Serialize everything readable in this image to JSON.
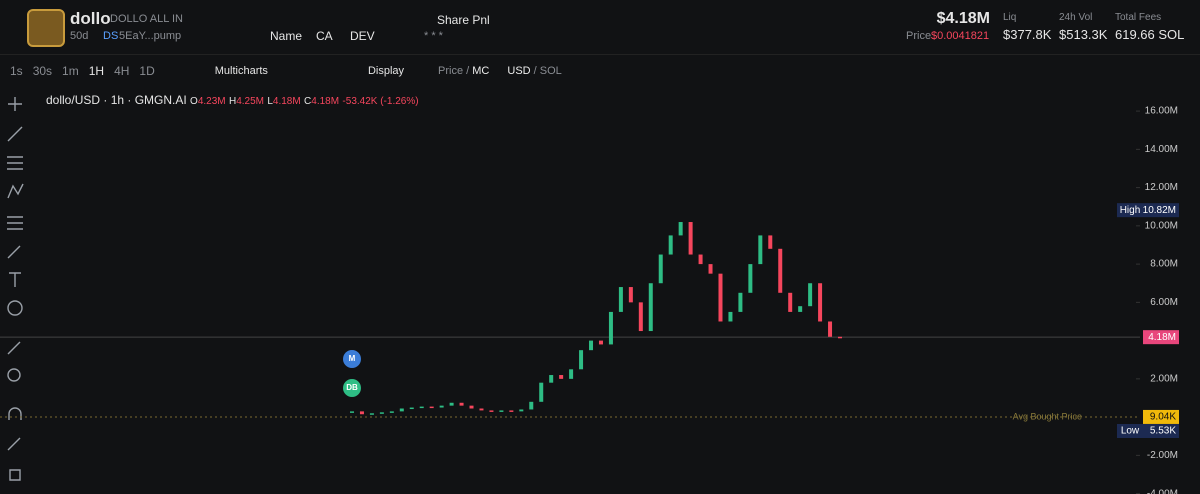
{
  "header": {
    "name": "dollo",
    "full_name": "DOLLO ALL IN",
    "age": "50d",
    "ds": "DS",
    "address": "5EaY...pump",
    "links": [
      "Name",
      "CA",
      "DEV"
    ],
    "share": "Share Pnl",
    "stars": "* * *",
    "market_cap": "$4.18M",
    "price_label": "Price",
    "price": "$0.0041821",
    "stats": [
      {
        "label": "Liq",
        "value": "$377.8K"
      },
      {
        "label": "24h Vol",
        "value": "$513.3K"
      },
      {
        "label": "Total Fees",
        "value": "619.66 SOL"
      }
    ]
  },
  "toolbar": {
    "intervals": [
      "1s",
      "30s",
      "1m",
      "1H",
      "4H",
      "1D"
    ],
    "multicharts": "Multicharts",
    "display": "Display",
    "price": "Price",
    "sep": "/",
    "mc": "MC",
    "usd": "USD",
    "sol": "/ SOL"
  },
  "legend": {
    "symbol": "dollo/USD · 1h · GMGN.AI",
    "o": "O",
    "o_val": "4.23M",
    "h": "H",
    "h_val": "4.25M",
    "l": "L",
    "l_val": "4.18M",
    "c": "C",
    "c_val": "4.18M",
    "change": "-53.42K (-1.26%)"
  },
  "chart_data": {
    "type": "candlestick",
    "up_color": "#2ebd85",
    "down_color": "#f6465d",
    "ylim": [
      -4020000,
      16580000
    ],
    "yticks": [
      {
        "value": 16000000,
        "label": "16.00M"
      },
      {
        "value": 14000000,
        "label": "14.00M"
      },
      {
        "value": 12000000,
        "label": "12.00M"
      },
      {
        "value": 10000000,
        "label": "10.00M"
      },
      {
        "value": 8000000,
        "label": "8.00M"
      },
      {
        "value": 6000000,
        "label": "6.00M"
      },
      {
        "value": 2000000,
        "label": "2.00M"
      },
      {
        "value": -2000000,
        "label": "-2.00M"
      },
      {
        "value": -4000000,
        "label": "-4.00M"
      }
    ],
    "values": [
      300000,
      150000,
      200000,
      250000,
      300000,
      450000,
      500000,
      550000,
      500000,
      600000,
      750000,
      600000,
      450000,
      350000,
      300000,
      350000,
      300000,
      400000,
      800000,
      1800000,
      2200000,
      2000000,
      2500000,
      3500000,
      4000000,
      3800000,
      5500000,
      6800000,
      6000000,
      4500000,
      7000000,
      8500000,
      9500000,
      10200000,
      8500000,
      8000000,
      7500000,
      5000000,
      5500000,
      6500000,
      8000000,
      9500000,
      8800000,
      6500000,
      5500000,
      5800000,
      7000000,
      5000000,
      4200000,
      4180000
    ],
    "price_labels": [
      {
        "name": "High",
        "value": 10820000,
        "value_label": "10.82M",
        "color": "#1c2a52"
      },
      {
        "value": 4180000,
        "value_label": "4.18M",
        "color": "#e8467c"
      },
      {
        "value": 9040,
        "value_label": "9.04K",
        "color": "#f0b90b"
      },
      {
        "name": "Low",
        "value": 5530,
        "value_label": "5.53K",
        "color": "#1c2a52"
      }
    ],
    "avg_bought_label": "Avg Bought Price",
    "markers": [
      {
        "label": "M",
        "color": "#3b7dd8"
      },
      {
        "label": "DB",
        "color": "#2ebd85"
      }
    ]
  }
}
